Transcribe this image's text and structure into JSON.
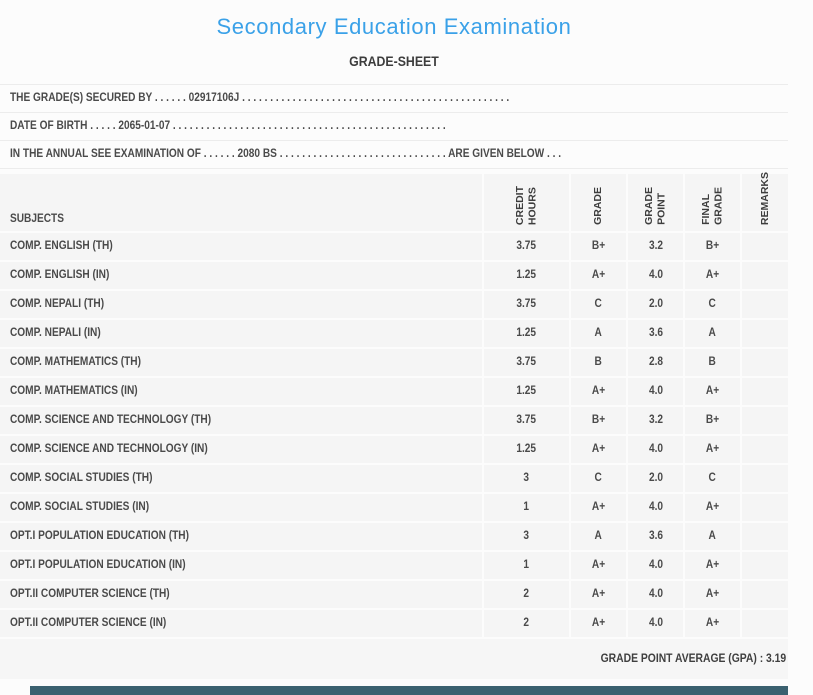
{
  "page": {
    "title": "Secondary Education Examination",
    "subtitle": "GRADE-SHEET"
  },
  "colors": {
    "accent_blue": "#3aa1e8",
    "row_background": "#f5f5f5",
    "footer_bar": "#3b6170",
    "text": "#4a4a4a"
  },
  "info": {
    "line1": {
      "label": "THE GRADE(S) SECURED BY",
      "dots1": " . . . . . . ",
      "value": "02917106J",
      "dots2": " . . . . . . . . . . . . . . . . . . . . . . . . . . . . . . . . . . . . . . . . . . . . . . . ."
    },
    "line2": {
      "label": "DATE OF BIRTH",
      "dots1": " . . . . . ",
      "value": "2065-01-07",
      "dots2": " . . . . . . . . . . . . . . . . . . . . . . . . . . . . . . . . . . . . . . . . . . . . . . . . ."
    },
    "line3": {
      "label": "IN THE ANNUAL SEE EXAMINATION OF",
      "dots1": " . . . . . . ",
      "value": "2080 BS",
      "dots2": " . . . . . . . . . . . . . . . . . . . . . . . . . . . . . . ",
      "suffix": "ARE GIVEN BELOW . . ."
    }
  },
  "table": {
    "headers": [
      {
        "key": "subjects",
        "label": "SUBJECTS",
        "vertical": false
      },
      {
        "key": "credit-hours",
        "label": "CREDIT\nHOURS",
        "vertical": true
      },
      {
        "key": "grade",
        "label": "GRADE",
        "vertical": true
      },
      {
        "key": "grade-point",
        "label": "GRADE\nPOINT",
        "vertical": true
      },
      {
        "key": "final-grade",
        "label": "FINAL\nGRADE",
        "vertical": true
      },
      {
        "key": "remarks",
        "label": "REMARKS",
        "vertical": true
      }
    ],
    "rows": [
      [
        "COMP. ENGLISH (TH)",
        "3.75",
        "B+",
        "3.2",
        "B+",
        ""
      ],
      [
        "COMP. ENGLISH (IN)",
        "1.25",
        "A+",
        "4.0",
        "A+",
        ""
      ],
      [
        "COMP. NEPALI (TH)",
        "3.75",
        "C",
        "2.0",
        "C",
        ""
      ],
      [
        "COMP. NEPALI (IN)",
        "1.25",
        "A",
        "3.6",
        "A",
        ""
      ],
      [
        "COMP. MATHEMATICS (TH)",
        "3.75",
        "B",
        "2.8",
        "B",
        ""
      ],
      [
        "COMP. MATHEMATICS (IN)",
        "1.25",
        "A+",
        "4.0",
        "A+",
        ""
      ],
      [
        "COMP. SCIENCE AND TECHNOLOGY (TH)",
        "3.75",
        "B+",
        "3.2",
        "B+",
        ""
      ],
      [
        "COMP. SCIENCE AND TECHNOLOGY (IN)",
        "1.25",
        "A+",
        "4.0",
        "A+",
        ""
      ],
      [
        "COMP. SOCIAL STUDIES (TH)",
        "3",
        "C",
        "2.0",
        "C",
        ""
      ],
      [
        "COMP. SOCIAL STUDIES (IN)",
        "1",
        "A+",
        "4.0",
        "A+",
        ""
      ],
      [
        "OPT.I POPULATION EDUCATION (TH)",
        "3",
        "A",
        "3.6",
        "A",
        ""
      ],
      [
        "OPT.I POPULATION EDUCATION (IN)",
        "1",
        "A+",
        "4.0",
        "A+",
        ""
      ],
      [
        "OPT.II COMPUTER SCIENCE (TH)",
        "2",
        "A+",
        "4.0",
        "A+",
        ""
      ],
      [
        "OPT.II COMPUTER SCIENCE (IN)",
        "2",
        "A+",
        "4.0",
        "A+",
        ""
      ]
    ]
  },
  "summary": {
    "gpa": "GRADE POINT AVERAGE (GPA) : 3.19"
  }
}
